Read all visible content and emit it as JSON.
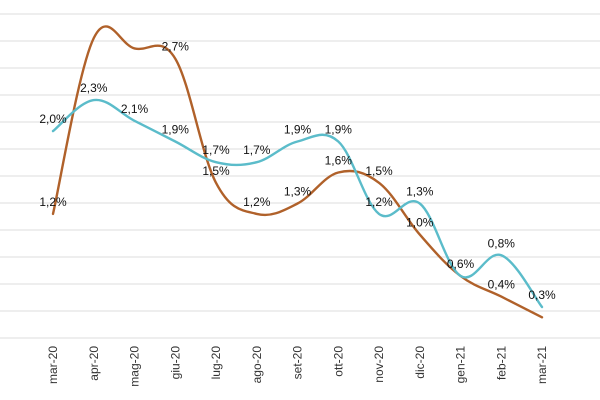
{
  "chart_data": {
    "type": "line",
    "categories": [
      "mar-20",
      "apr-20",
      "mag-20",
      "giu-20",
      "lug-20",
      "ago-20",
      "set-20",
      "ott-20",
      "nov-20",
      "dic-20",
      "gen-21",
      "feb-21",
      "mar-21"
    ],
    "series": [
      {
        "color": "#b0612a",
        "values": [
          1.2,
          2.9,
          2.8,
          2.7,
          1.5,
          1.2,
          1.3,
          1.6,
          1.5,
          1.0,
          0.6,
          0.4,
          0.2
        ],
        "labels": [
          "1,2%",
          "",
          "",
          "2,7%",
          "1,5%",
          "1,2%",
          "1,3%",
          "1,6%",
          "1,5%",
          "1,0%",
          "",
          "0,4%",
          ""
        ]
      },
      {
        "color": "#5bbcca",
        "values": [
          2.0,
          2.3,
          2.1,
          1.9,
          1.7,
          1.7,
          1.9,
          1.9,
          1.2,
          1.3,
          0.6,
          0.8,
          0.3
        ],
        "labels": [
          "2,0%",
          "2,3%",
          "2,1%",
          "1,9%",
          "1,7%",
          "1,7%",
          "1,9%",
          "1,9%",
          "1,2%",
          "1,3%",
          "0,6%",
          "0,8%",
          "0,3%"
        ]
      }
    ],
    "ylim": [
      0,
      3.2
    ],
    "grid": true,
    "legend": "none"
  }
}
